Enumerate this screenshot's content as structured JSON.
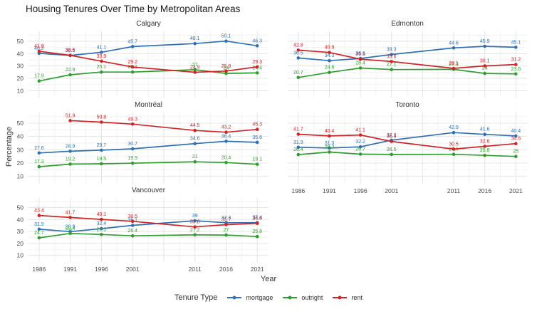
{
  "title": "Housing Tenures Over Time by Metropolitan Areas",
  "axes": {
    "x_label": "Year",
    "y_label": "Percentage",
    "y_ticks": [
      10,
      20,
      30,
      40,
      50
    ],
    "x_ticks": [
      1986,
      1991,
      1996,
      2001,
      2011,
      2016,
      2021
    ]
  },
  "legend": {
    "title": "Tenure Type",
    "items": [
      {
        "label": "mortgage",
        "color": "#3070b3"
      },
      {
        "label": "outright",
        "color": "#2f9e30"
      },
      {
        "label": "rent",
        "color": "#d02427"
      }
    ]
  },
  "chart_data": {
    "type": "line",
    "x": [
      1986,
      1991,
      1996,
      2001,
      2011,
      2016,
      2021
    ],
    "xlabel": "Year",
    "ylabel": "Percentage",
    "ylim": [
      4.5,
      58
    ],
    "grid": true,
    "legend_position": "bottom",
    "series_names": [
      "mortgage",
      "outright",
      "rent"
    ],
    "facets": [
      {
        "name": "Calgary",
        "series": [
          {
            "name": "mortgage",
            "values": [
              40.2,
              38.5,
              41.1,
              45.7,
              48.1,
              50.1,
              46.3
            ]
          },
          {
            "name": "outright",
            "values": [
              17.9,
              22.9,
              25.1,
              25.1,
              27,
              24,
              24.4
            ]
          },
          {
            "name": "rent",
            "values": [
              41.9,
              38.6,
              33.9,
              29.2,
              24.9,
              25.9,
              29.3
            ]
          }
        ]
      },
      {
        "name": "Edmonton",
        "series": [
          {
            "name": "mortgage",
            "values": [
              36.5,
              34.3,
              36.1,
              39.3,
              44.6,
              45.9,
              45.1
            ]
          },
          {
            "name": "outright",
            "values": [
              20.7,
              24.8,
              28.4,
              27.1,
              27.3,
              24,
              23.6
            ]
          },
          {
            "name": "rent",
            "values": [
              42.8,
              40.9,
              35.5,
              33.6,
              28.1,
              30.1,
              31.2
            ]
          }
        ]
      },
      {
        "name": "Montréal",
        "series": [
          {
            "name": "mortgage",
            "values": [
              27.6,
              28.9,
              29.7,
              30.7,
              34.6,
              36.4,
              35.6
            ]
          },
          {
            "name": "outright",
            "values": [
              17.3,
              19.2,
              19.5,
              19.9,
              21,
              20.4,
              19.1
            ]
          },
          {
            "name": "rent",
            "values": [
              null,
              51.9,
              50.8,
              49.3,
              44.5,
              43.2,
              45.3
            ]
          }
        ]
      },
      {
        "name": "Toronto",
        "series": [
          {
            "name": "mortgage",
            "values": [
              31.9,
              31.3,
              32.2,
              37.2,
              42.9,
              41.6,
              40.4
            ]
          },
          {
            "name": "outright",
            "values": [
              26.4,
              28.3,
              26.7,
              26.5,
              26.6,
              25.8,
              25
            ]
          },
          {
            "name": "rent",
            "values": [
              41.7,
              40.4,
              41.1,
              36.3,
              30.5,
              32.6,
              34.6
            ]
          }
        ]
      },
      {
        "name": "Vancouver",
        "series": [
          {
            "name": "mortgage",
            "values": [
              31.9,
              29.9,
              32.4,
              35.1,
              39,
              37.3,
              37.4
            ]
          },
          {
            "name": "outright",
            "values": [
              24.7,
              28.4,
              27.5,
              26.4,
              27.2,
              27,
              25.8
            ]
          },
          {
            "name": "rent",
            "values": [
              43.4,
              41.7,
              40.1,
              38.5,
              33.8,
              35.7,
              36.8
            ]
          }
        ]
      }
    ]
  }
}
